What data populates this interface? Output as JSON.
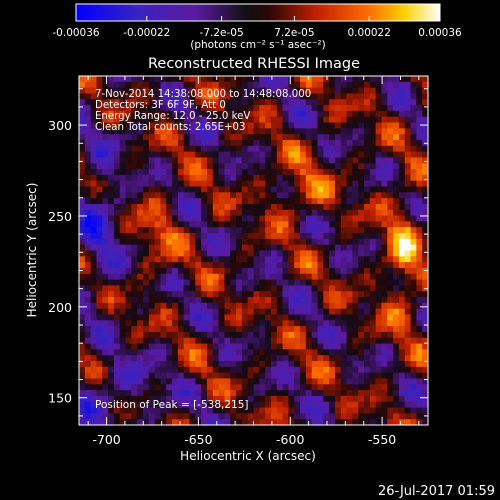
{
  "chart_data": {
    "type": "heatmap",
    "title": "Reconstructed RHESSI Image",
    "xlabel": "Heliocentric X (arcsec)",
    "ylabel": "Heliocentric Y (arcsec)",
    "xlim": [
      -715,
      -525
    ],
    "ylim": [
      135,
      327
    ],
    "x_ticks": [
      -700,
      -650,
      -600,
      -550
    ],
    "y_ticks": [
      150,
      200,
      250,
      300
    ],
    "colorbar": {
      "min": -0.00036,
      "max": 0.00036,
      "tick_values": [
        -0.00036,
        -0.00022,
        -7.2e-05,
        7.2e-05,
        0.00022,
        0.00036
      ],
      "tick_labels": [
        "-0.00036",
        "-0.00022",
        "-7.2e-05",
        "7.2e-05",
        "0.00022",
        "0.00036"
      ],
      "unit_label": "(photons cm⁻² s⁻¹ asec⁻²)",
      "colors": [
        "#0000ff",
        "#5a1aa0",
        "#000000",
        "#5a0a0a",
        "#c02000",
        "#ff6a00",
        "#ffd000",
        "#ffffff"
      ]
    },
    "grid": false,
    "annotations": [
      "7-Nov-2014 14:38:08.000 to 14:48:08.000",
      "Detectors: 3F 6F 9F, Att 0",
      "Energy Range: 12.0 - 25.0 keV",
      "Clean     Total counts: 2.65E+03"
    ],
    "peak_label": "Position of Peak = [-538,215]",
    "peak_position": [
      -538,
      215
    ]
  },
  "footer": {
    "timestamp": "26-Jul-2017 01:59"
  }
}
